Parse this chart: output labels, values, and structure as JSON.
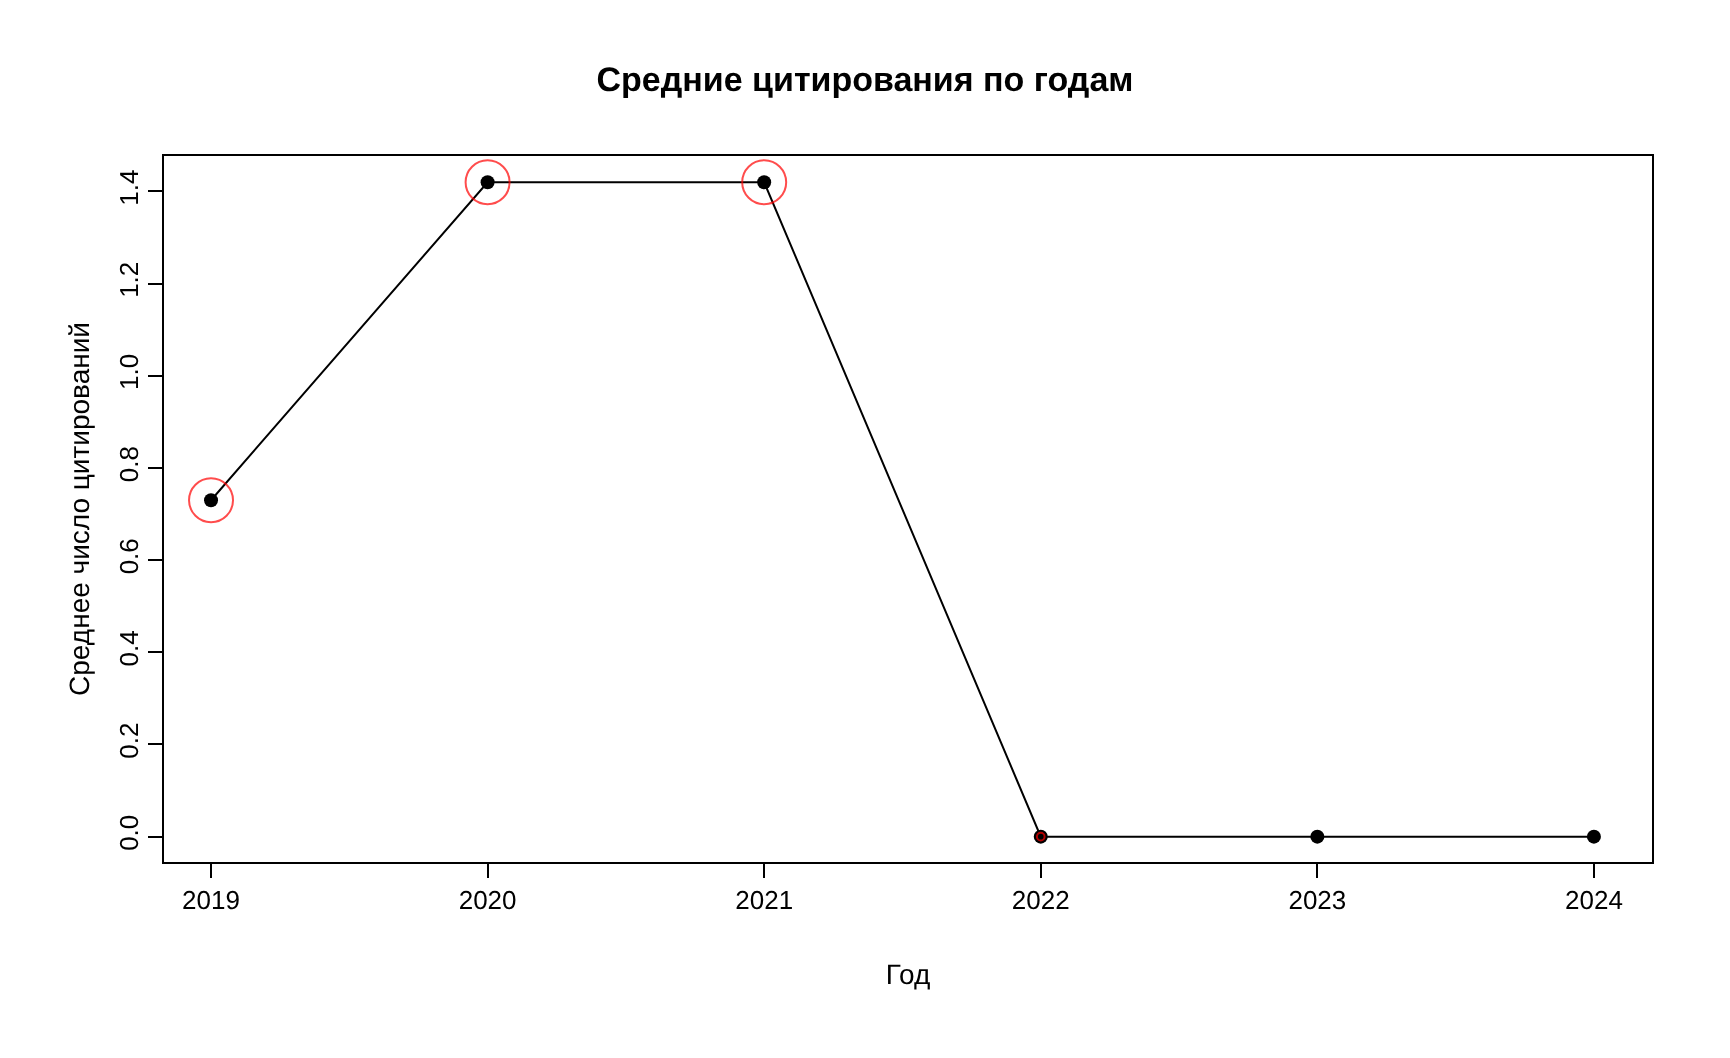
{
  "chart_data": {
    "type": "line",
    "title": "Средние цитирования по годам",
    "xlabel": "Год",
    "ylabel": "Среднее число цитирований",
    "x": [
      2019,
      2020,
      2021,
      2022,
      2023,
      2024
    ],
    "series": [
      {
        "color": "#000000",
        "marker": "circle",
        "values": [
          0.73,
          1.42,
          1.42,
          0,
          0,
          0
        ]
      },
      {
        "type": "bubble",
        "color": "#ff0000",
        "values": [
          0.73,
          1.42,
          1.42,
          0,
          null,
          null
        ],
        "sizes": [
          1,
          1,
          1,
          0.03,
          null,
          null
        ]
      }
    ],
    "xlim": [
      2018.83,
      2024.21
    ],
    "xticks": [
      2019,
      2020,
      2021,
      2022,
      2023,
      2024
    ],
    "ylim": [
      -0.055,
      1.477
    ],
    "yticks": [
      {
        "value": 0,
        "label": "0.0"
      },
      0.2,
      0.4,
      0.6,
      0.8,
      {
        "value": 1,
        "label": "1.0"
      },
      1.2,
      1.4
    ]
  }
}
